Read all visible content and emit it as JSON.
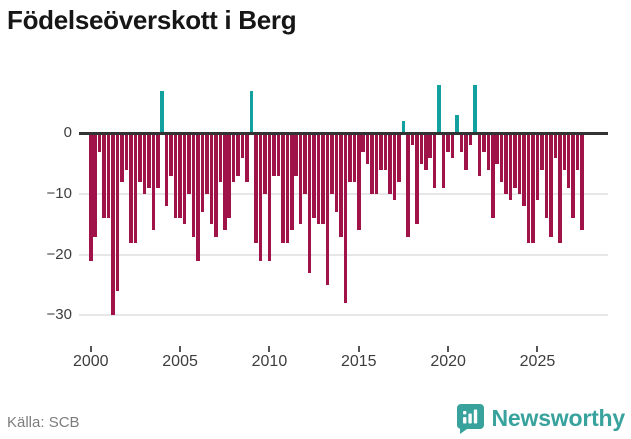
{
  "header": {
    "title": "Födelseöverskott i Berg"
  },
  "footer": {
    "source": "Källa: SCB",
    "brand": "Newsworthy"
  },
  "colors": {
    "negative_bar": "#a01349",
    "positive_bar": "#12a19f",
    "zero_axis": "#333333",
    "gridline": "#e7e7e7",
    "axis_text": "#3d3d3d",
    "muted_text": "#7d7d7d",
    "brand_teal": "#38a29c",
    "title_text": "#161616"
  },
  "chart_data": {
    "type": "bar",
    "title": "Födelseöverskott i Berg",
    "period": "quarterly",
    "start": "2000-Q1",
    "xlabel": "",
    "ylabel": "",
    "x_tick_labels": [
      "2000",
      "2005",
      "2010",
      "2015",
      "2020",
      "2025"
    ],
    "x_tick_every_n_bars": 20,
    "y_ticks": [
      0,
      -10,
      -20,
      -30
    ],
    "y_tick_labels": [
      "0",
      "−10",
      "−20",
      "−30"
    ],
    "ylim": [
      -32,
      9
    ],
    "grid": true,
    "legend": false,
    "series": [
      {
        "name": "Födelseöverskott",
        "values": [
          -21,
          -17,
          -3,
          -14,
          -14,
          -30,
          -26,
          -8,
          -6,
          -18,
          -18,
          -8,
          -10,
          -9,
          -16,
          -9,
          7,
          -12,
          -7,
          -14,
          -14,
          -15,
          -10,
          -17,
          -21,
          -13,
          -10,
          -15,
          -17,
          -8,
          -16,
          -14,
          -8,
          -7,
          -4,
          -8,
          7,
          -18,
          -21,
          -10,
          -21,
          -7,
          -7,
          -18,
          -18,
          -16,
          -7,
          -15,
          -10,
          -23,
          -14,
          -15,
          -15,
          -25,
          -10,
          -13,
          -17,
          -28,
          -8,
          -8,
          -16,
          -3,
          -5,
          -10,
          -10,
          -6,
          -6,
          -10,
          -11,
          -8,
          2,
          -17,
          -2,
          -15,
          -5,
          -6,
          -4,
          -9,
          8,
          -9,
          -3,
          -4,
          3,
          -3,
          -6,
          -2,
          8,
          -7,
          -3,
          -6,
          -14,
          -5,
          -8,
          -10,
          -11,
          -9,
          -10,
          -12,
          -18,
          -18,
          -11,
          -6,
          -14,
          -17,
          -4,
          -18,
          -6,
          -9,
          -14,
          -6,
          -16
        ]
      }
    ]
  }
}
